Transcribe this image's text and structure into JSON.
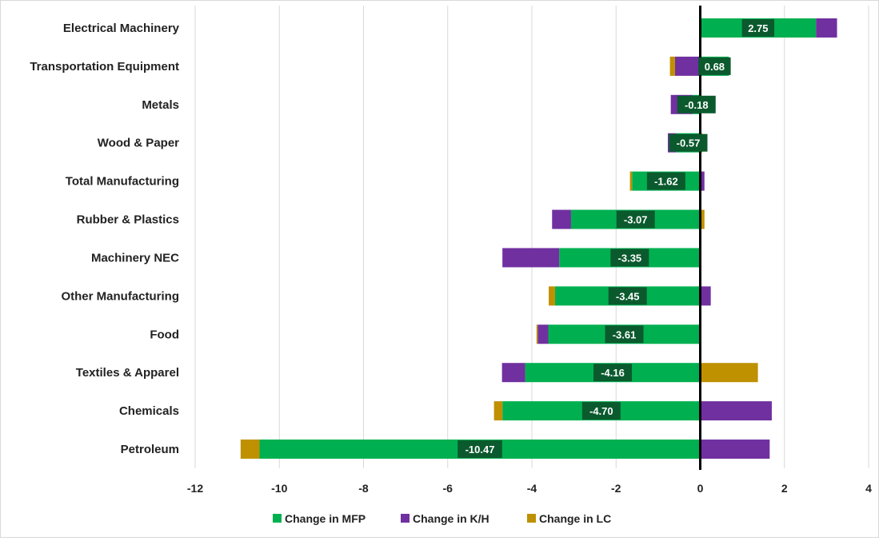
{
  "chart_data": {
    "type": "bar",
    "orientation": "horizontal",
    "stacked": true,
    "title": "",
    "xlabel": "",
    "ylabel": "",
    "xlim": [
      -12,
      4
    ],
    "x_ticks": [
      "-12",
      "-10",
      "-8",
      "-6",
      "-4",
      "-2",
      "0",
      "2",
      "4"
    ],
    "grid": "vertical",
    "legend_position": "bottom",
    "categories": [
      "Electrical Machinery",
      "Transportation Equipment",
      "Metals",
      "Wood & Paper",
      "Total Manufacturing",
      "Rubber & Plastics",
      "Machinery NEC",
      "Other Manufacturing",
      "Food",
      "Textiles & Apparel",
      "Chemicals",
      "Petroleum"
    ],
    "series": [
      {
        "name": "Change in MFP",
        "color": "#00b050",
        "values": [
          2.75,
          0.68,
          -0.18,
          -0.57,
          -1.62,
          -3.07,
          -3.35,
          -3.45,
          -3.61,
          -4.16,
          -4.7,
          -10.47
        ]
      },
      {
        "name": "Change in K/H",
        "color": "#7030a0",
        "values": [
          0.5,
          -0.6,
          -0.52,
          -0.2,
          0.1,
          -0.45,
          -1.35,
          0.25,
          -0.25,
          -0.55,
          1.7,
          1.65
        ]
      },
      {
        "name": "Change in LC",
        "color": "#bf9000",
        "values": [
          0.0,
          -0.12,
          0.0,
          0.05,
          -0.05,
          0.1,
          0.0,
          -0.15,
          -0.03,
          1.37,
          -0.2,
          -0.45
        ]
      }
    ],
    "data_labels": [
      "2.75",
      "0.68",
      "-0.18",
      "-0.57",
      "-1.62",
      "-3.07",
      "-3.35",
      "-3.45",
      "-3.61",
      "-4.16",
      "-4.70",
      "-10.47"
    ]
  }
}
